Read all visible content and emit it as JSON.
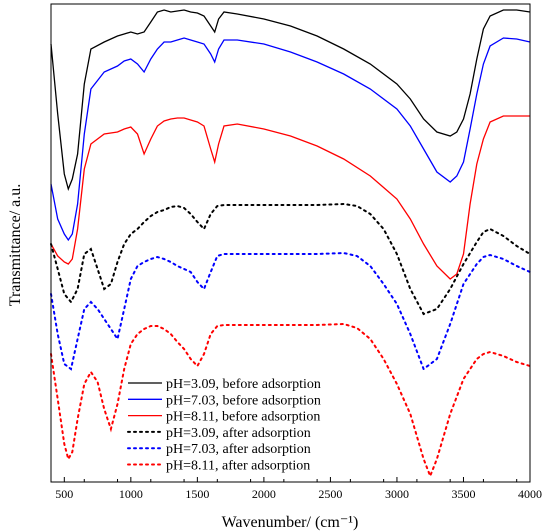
{
  "chart_data": {
    "type": "line",
    "title": "",
    "xlabel": "Wavenumber/ (cm⁻¹)",
    "ylabel": "Transmittance/ a.u.",
    "xlim": [
      400,
      4000
    ],
    "x_ticks": [
      500,
      1000,
      1500,
      2000,
      2500,
      3000,
      3500,
      4000
    ],
    "y_ticks_shown": false,
    "grid": false,
    "legend_position": "bottom-center",
    "series": [
      {
        "name": "pH=3.09, before adsorption",
        "color": "#000000",
        "style": "solid",
        "points": [
          [
            400,
            40
          ],
          [
            450,
            110
          ],
          [
            500,
            170
          ],
          [
            530,
            185
          ],
          [
            560,
            175
          ],
          [
            600,
            150
          ],
          [
            650,
            80
          ],
          [
            700,
            45
          ],
          [
            800,
            38
          ],
          [
            900,
            32
          ],
          [
            950,
            30
          ],
          [
            1000,
            28
          ],
          [
            1050,
            30
          ],
          [
            1100,
            28
          ],
          [
            1150,
            18
          ],
          [
            1200,
            8
          ],
          [
            1250,
            6
          ],
          [
            1300,
            8
          ],
          [
            1350,
            7
          ],
          [
            1400,
            6
          ],
          [
            1450,
            8
          ],
          [
            1500,
            9
          ],
          [
            1550,
            12
          ],
          [
            1600,
            22
          ],
          [
            1630,
            28
          ],
          [
            1660,
            15
          ],
          [
            1700,
            8
          ],
          [
            1800,
            10
          ],
          [
            2000,
            15
          ],
          [
            2200,
            22
          ],
          [
            2400,
            32
          ],
          [
            2600,
            45
          ],
          [
            2800,
            60
          ],
          [
            3000,
            80
          ],
          [
            3100,
            95
          ],
          [
            3200,
            115
          ],
          [
            3300,
            128
          ],
          [
            3400,
            132
          ],
          [
            3450,
            128
          ],
          [
            3500,
            115
          ],
          [
            3550,
            90
          ],
          [
            3600,
            55
          ],
          [
            3650,
            25
          ],
          [
            3700,
            12
          ],
          [
            3800,
            6
          ],
          [
            3900,
            6
          ],
          [
            4000,
            8
          ]
        ]
      },
      {
        "name": "pH=7.03, before adsorption",
        "color": "#0000ff",
        "style": "solid",
        "points": [
          [
            400,
            180
          ],
          [
            450,
            215
          ],
          [
            500,
            230
          ],
          [
            530,
            236
          ],
          [
            560,
            230
          ],
          [
            600,
            200
          ],
          [
            650,
            130
          ],
          [
            700,
            85
          ],
          [
            800,
            68
          ],
          [
            900,
            62
          ],
          [
            950,
            57
          ],
          [
            1000,
            55
          ],
          [
            1050,
            60
          ],
          [
            1100,
            68
          ],
          [
            1150,
            55
          ],
          [
            1200,
            45
          ],
          [
            1250,
            38
          ],
          [
            1300,
            38
          ],
          [
            1350,
            36
          ],
          [
            1400,
            34
          ],
          [
            1450,
            36
          ],
          [
            1500,
            38
          ],
          [
            1550,
            40
          ],
          [
            1600,
            50
          ],
          [
            1630,
            58
          ],
          [
            1660,
            45
          ],
          [
            1700,
            36
          ],
          [
            1800,
            36
          ],
          [
            2000,
            40
          ],
          [
            2200,
            48
          ],
          [
            2400,
            58
          ],
          [
            2600,
            70
          ],
          [
            2800,
            85
          ],
          [
            3000,
            105
          ],
          [
            3100,
            122
          ],
          [
            3200,
            145
          ],
          [
            3300,
            168
          ],
          [
            3400,
            178
          ],
          [
            3450,
            172
          ],
          [
            3500,
            158
          ],
          [
            3550,
            125
          ],
          [
            3600,
            90
          ],
          [
            3650,
            60
          ],
          [
            3700,
            42
          ],
          [
            3800,
            34
          ],
          [
            3900,
            35
          ],
          [
            4000,
            38
          ]
        ]
      },
      {
        "name": "pH=8.11, before adsorption",
        "color": "#ff0000",
        "style": "solid",
        "points": [
          [
            400,
            240
          ],
          [
            450,
            252
          ],
          [
            500,
            258
          ],
          [
            530,
            260
          ],
          [
            560,
            255
          ],
          [
            600,
            225
          ],
          [
            650,
            165
          ],
          [
            700,
            140
          ],
          [
            800,
            130
          ],
          [
            900,
            128
          ],
          [
            950,
            125
          ],
          [
            1000,
            123
          ],
          [
            1050,
            130
          ],
          [
            1100,
            150
          ],
          [
            1150,
            135
          ],
          [
            1200,
            122
          ],
          [
            1250,
            117
          ],
          [
            1300,
            115
          ],
          [
            1350,
            114
          ],
          [
            1400,
            114
          ],
          [
            1450,
            116
          ],
          [
            1500,
            118
          ],
          [
            1550,
            122
          ],
          [
            1600,
            145
          ],
          [
            1630,
            158
          ],
          [
            1660,
            140
          ],
          [
            1700,
            122
          ],
          [
            1800,
            120
          ],
          [
            2000,
            125
          ],
          [
            2200,
            132
          ],
          [
            2400,
            142
          ],
          [
            2600,
            155
          ],
          [
            2800,
            172
          ],
          [
            3000,
            195
          ],
          [
            3100,
            215
          ],
          [
            3200,
            240
          ],
          [
            3300,
            262
          ],
          [
            3400,
            275
          ],
          [
            3450,
            270
          ],
          [
            3500,
            250
          ],
          [
            3550,
            200
          ],
          [
            3600,
            160
          ],
          [
            3650,
            135
          ],
          [
            3700,
            118
          ],
          [
            3800,
            112
          ],
          [
            3900,
            112
          ],
          [
            4000,
            112
          ]
        ]
      },
      {
        "name": "pH=3.09, after adsorption",
        "color": "#000000",
        "style": "dotted",
        "points": [
          [
            400,
            240
          ],
          [
            450,
            265
          ],
          [
            500,
            290
          ],
          [
            550,
            298
          ],
          [
            600,
            285
          ],
          [
            650,
            250
          ],
          [
            700,
            245
          ],
          [
            750,
            265
          ],
          [
            800,
            285
          ],
          [
            850,
            280
          ],
          [
            900,
            258
          ],
          [
            950,
            240
          ],
          [
            1000,
            230
          ],
          [
            1050,
            225
          ],
          [
            1100,
            218
          ],
          [
            1150,
            212
          ],
          [
            1200,
            208
          ],
          [
            1250,
            206
          ],
          [
            1300,
            203
          ],
          [
            1350,
            202
          ],
          [
            1400,
            204
          ],
          [
            1450,
            210
          ],
          [
            1500,
            218
          ],
          [
            1550,
            225
          ],
          [
            1600,
            210
          ],
          [
            1650,
            202
          ],
          [
            1700,
            201
          ],
          [
            1800,
            201
          ],
          [
            2000,
            201
          ],
          [
            2200,
            201
          ],
          [
            2400,
            201
          ],
          [
            2600,
            200
          ],
          [
            2700,
            202
          ],
          [
            2800,
            210
          ],
          [
            2900,
            225
          ],
          [
            3000,
            250
          ],
          [
            3100,
            285
          ],
          [
            3200,
            310
          ],
          [
            3300,
            305
          ],
          [
            3400,
            285
          ],
          [
            3500,
            260
          ],
          [
            3600,
            238
          ],
          [
            3650,
            228
          ],
          [
            3700,
            225
          ],
          [
            3800,
            232
          ],
          [
            3900,
            242
          ],
          [
            4000,
            250
          ]
        ]
      },
      {
        "name": "pH=7.03, after adsorption",
        "color": "#0000ff",
        "style": "dotted",
        "points": [
          [
            400,
            290
          ],
          [
            450,
            330
          ],
          [
            500,
            360
          ],
          [
            550,
            365
          ],
          [
            600,
            335
          ],
          [
            650,
            305
          ],
          [
            700,
            298
          ],
          [
            750,
            305
          ],
          [
            800,
            315
          ],
          [
            850,
            325
          ],
          [
            900,
            335
          ],
          [
            950,
            305
          ],
          [
            1000,
            275
          ],
          [
            1050,
            262
          ],
          [
            1100,
            258
          ],
          [
            1150,
            255
          ],
          [
            1200,
            253
          ],
          [
            1250,
            255
          ],
          [
            1300,
            258
          ],
          [
            1350,
            262
          ],
          [
            1400,
            265
          ],
          [
            1450,
            268
          ],
          [
            1500,
            278
          ],
          [
            1550,
            285
          ],
          [
            1600,
            268
          ],
          [
            1650,
            252
          ],
          [
            1700,
            250
          ],
          [
            1800,
            250
          ],
          [
            2000,
            250
          ],
          [
            2200,
            250
          ],
          [
            2400,
            250
          ],
          [
            2600,
            249
          ],
          [
            2700,
            252
          ],
          [
            2800,
            262
          ],
          [
            2900,
            280
          ],
          [
            3000,
            300
          ],
          [
            3100,
            330
          ],
          [
            3200,
            365
          ],
          [
            3300,
            355
          ],
          [
            3400,
            320
          ],
          [
            3500,
            280
          ],
          [
            3600,
            260
          ],
          [
            3650,
            253
          ],
          [
            3700,
            251
          ],
          [
            3800,
            255
          ],
          [
            3900,
            262
          ],
          [
            4000,
            268
          ]
        ]
      },
      {
        "name": "pH=8.11, after adsorption",
        "color": "#ff0000",
        "style": "dotted",
        "points": [
          [
            400,
            350
          ],
          [
            450,
            395
          ],
          [
            500,
            440
          ],
          [
            530,
            455
          ],
          [
            560,
            448
          ],
          [
            600,
            415
          ],
          [
            650,
            380
          ],
          [
            700,
            368
          ],
          [
            750,
            378
          ],
          [
            800,
            405
          ],
          [
            850,
            425
          ],
          [
            900,
            400
          ],
          [
            950,
            365
          ],
          [
            1000,
            340
          ],
          [
            1050,
            330
          ],
          [
            1100,
            325
          ],
          [
            1150,
            322
          ],
          [
            1200,
            322
          ],
          [
            1250,
            325
          ],
          [
            1300,
            330
          ],
          [
            1350,
            338
          ],
          [
            1400,
            345
          ],
          [
            1450,
            355
          ],
          [
            1500,
            362
          ],
          [
            1550,
            350
          ],
          [
            1600,
            330
          ],
          [
            1650,
            322
          ],
          [
            1700,
            321
          ],
          [
            1800,
            321
          ],
          [
            2000,
            321
          ],
          [
            2200,
            321
          ],
          [
            2400,
            321
          ],
          [
            2600,
            320
          ],
          [
            2700,
            324
          ],
          [
            2800,
            335
          ],
          [
            2900,
            355
          ],
          [
            3000,
            380
          ],
          [
            3100,
            410
          ],
          [
            3200,
            455
          ],
          [
            3250,
            472
          ],
          [
            3300,
            455
          ],
          [
            3400,
            410
          ],
          [
            3500,
            375
          ],
          [
            3600,
            355
          ],
          [
            3650,
            350
          ],
          [
            3700,
            348
          ],
          [
            3800,
            352
          ],
          [
            3900,
            358
          ],
          [
            4000,
            362
          ]
        ]
      }
    ]
  }
}
